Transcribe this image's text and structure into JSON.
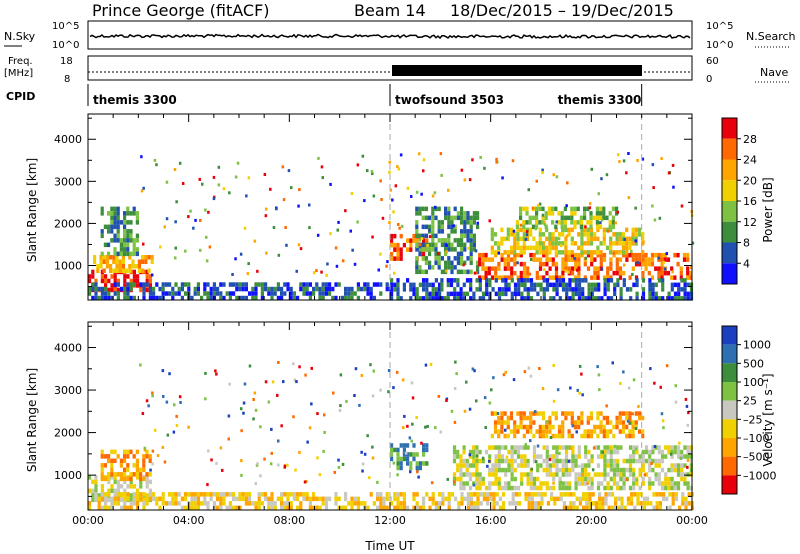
{
  "header": {
    "title": "Prince George (fitACF)",
    "beam": "Beam 14",
    "dates": "18/Dec/2015 – 19/Dec/2015"
  },
  "strip": {
    "nsky_label": "N.Sky",
    "nsearch_label": "N.Search",
    "noise_ticks": [
      "10^5",
      "10^0"
    ],
    "freq_label_top": "Freq.",
    "freq_label_unit": "[MHz]",
    "freq_ticks": [
      "18",
      "8"
    ],
    "nave_label": "Nave",
    "nave_ticks": [
      "60",
      "0"
    ],
    "cpid_label": "CPID",
    "cpid_segments": [
      {
        "name": "themis 3300",
        "start_hour": 0,
        "end_hour": 12
      },
      {
        "name": "twofsound 3503",
        "start_hour": 12,
        "end_hour": 22
      },
      {
        "name": "themis 3300",
        "start_hour": 22,
        "end_hour": 24
      }
    ]
  },
  "chart_data": [
    {
      "type": "heatmap",
      "panel": "power",
      "ylabel": "Slant Range [km]",
      "xlabel": "",
      "xlim_hours": [
        0,
        24
      ],
      "ylim": [
        180,
        4600
      ],
      "yticks": [
        1000,
        2000,
        3000,
        4000
      ],
      "colorbar": {
        "label": "Power [dB]",
        "ticks": [
          "28",
          "24",
          "20",
          "16",
          "12",
          "8",
          "4"
        ],
        "colors": [
          "#e8000b",
          "#ff6a00",
          "#ffa500",
          "#f0d000",
          "#7dc242",
          "#3c8d3c",
          "#2050b0",
          "#1010ff"
        ]
      },
      "regions": [
        {
          "t0": 0.0,
          "t1": 2.5,
          "r0": 450,
          "r1": 900,
          "level": 0
        },
        {
          "t0": 0.2,
          "t1": 2.5,
          "r0": 850,
          "r1": 1250,
          "level": 2
        },
        {
          "t0": 0.5,
          "t1": 2.0,
          "r0": 1250,
          "r1": 2400,
          "level": 5
        },
        {
          "t0": 0.0,
          "t1": 12.0,
          "r0": 250,
          "r1": 600,
          "level": 6
        },
        {
          "t0": 12.0,
          "t1": 14.0,
          "r0": 250,
          "r1": 700,
          "level": 6
        },
        {
          "t0": 12.0,
          "t1": 13.5,
          "r0": 1150,
          "r1": 1750,
          "level": 1
        },
        {
          "t0": 13.0,
          "t1": 15.5,
          "r0": 800,
          "r1": 2400,
          "level": 5
        },
        {
          "t0": 15.5,
          "t1": 24.0,
          "r0": 700,
          "r1": 1300,
          "level": 1
        },
        {
          "t0": 16.0,
          "t1": 22.0,
          "r0": 1300,
          "r1": 1900,
          "level": 3
        },
        {
          "t0": 17.0,
          "t1": 21.0,
          "r0": 1900,
          "r1": 2400,
          "level": 4
        },
        {
          "t0": 14.0,
          "t1": 24.0,
          "r0": 250,
          "r1": 700,
          "level": 6
        }
      ]
    },
    {
      "type": "heatmap",
      "panel": "velocity",
      "ylabel": "Slant Range [km]",
      "xlabel": "Time UT",
      "xlim_hours": [
        0,
        24
      ],
      "xticks": [
        "00:00",
        "04:00",
        "08:00",
        "12:00",
        "16:00",
        "20:00",
        "00:00"
      ],
      "ylim": [
        180,
        4600
      ],
      "yticks": [
        1000,
        2000,
        3000,
        4000
      ],
      "colorbar": {
        "label": "Velocity [m s⁻¹]",
        "ticks": [
          "1000",
          "500",
          "100",
          "25",
          "–25",
          "–100",
          "–500",
          "–1000"
        ],
        "colors": [
          "#1a3fbf",
          "#2d6fb0",
          "#3c8d3c",
          "#7dc242",
          "#c8c8c0",
          "#f0d000",
          "#ffa500",
          "#ff6a00",
          "#e8000b"
        ]
      },
      "regions": [
        {
          "t0": 0.0,
          "t1": 2.5,
          "r0": 450,
          "r1": 1000,
          "level": 4
        },
        {
          "t0": 0.5,
          "t1": 2.5,
          "r0": 900,
          "r1": 1600,
          "level": 6
        },
        {
          "t0": 0.0,
          "t1": 12.0,
          "r0": 250,
          "r1": 600,
          "level": 5
        },
        {
          "t0": 12.0,
          "t1": 13.5,
          "r0": 1150,
          "r1": 1750,
          "level": 2
        },
        {
          "t0": 14.5,
          "t1": 24.0,
          "r0": 700,
          "r1": 1700,
          "level": 4
        },
        {
          "t0": 16.0,
          "t1": 22.0,
          "r0": 1900,
          "r1": 2500,
          "level": 6
        },
        {
          "t0": 12.0,
          "t1": 24.0,
          "r0": 250,
          "r1": 600,
          "level": 5
        }
      ]
    }
  ]
}
